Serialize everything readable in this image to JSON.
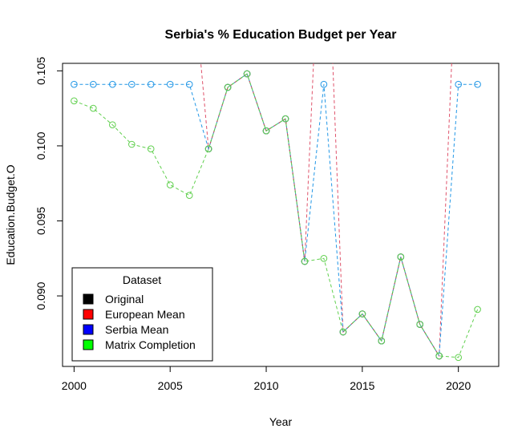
{
  "chart_data": {
    "type": "line",
    "title": "Serbia's % Education Budget per Year",
    "xlabel": "Year",
    "ylabel": "Education.Budget.O",
    "xlim": [
      1999.4,
      2022.1
    ],
    "ylim": [
      0.0853,
      0.1055
    ],
    "x_ticks": [
      2000,
      2005,
      2010,
      2015,
      2020
    ],
    "y_ticks": [
      0.09,
      0.095,
      0.1,
      0.105
    ],
    "x_tick_labels": [
      "2000",
      "2005",
      "2010",
      "2015",
      "2020"
    ],
    "y_tick_labels": [
      "0.090",
      "0.095",
      "0.100",
      "0.105"
    ],
    "grid": false,
    "legend": {
      "title": "Dataset",
      "position": "bottom-left",
      "entries": [
        "Original",
        "European Mean",
        "Serbia Mean",
        "Matrix Completion"
      ]
    },
    "x": [
      2000,
      2001,
      2002,
      2003,
      2004,
      2005,
      2006,
      2007,
      2008,
      2009,
      2010,
      2011,
      2012,
      2013,
      2014,
      2015,
      2016,
      2017,
      2018,
      2019,
      2020,
      2021
    ],
    "series": [
      {
        "name": "Original",
        "color": "#000000",
        "values": [
          null,
          null,
          null,
          null,
          null,
          null,
          null,
          0.0998,
          0.1039,
          0.1048,
          0.101,
          0.1018,
          0.0923,
          null,
          0.0876,
          0.0888,
          0.087,
          0.0926,
          0.0881,
          0.086,
          null,
          null
        ]
      },
      {
        "name": "European Mean",
        "color": "#DF536B",
        "values": [
          null,
          null,
          null,
          null,
          null,
          null,
          0.114,
          0.0998,
          0.1039,
          0.1048,
          0.101,
          0.1018,
          0.0923,
          0.121,
          0.0876,
          0.0888,
          0.087,
          0.0926,
          0.0881,
          0.086,
          0.116,
          null
        ]
      },
      {
        "name": "Serbia Mean",
        "color": "#2297E6",
        "values": [
          0.1041,
          0.1041,
          0.1041,
          0.1041,
          0.1041,
          0.1041,
          0.1041,
          0.0998,
          0.1039,
          0.1048,
          0.101,
          0.1018,
          0.0923,
          0.1041,
          0.0876,
          0.0888,
          0.087,
          0.0926,
          0.0881,
          0.086,
          0.1041,
          0.1041
        ]
      },
      {
        "name": "Matrix Completion",
        "color": "#61D04F",
        "values": [
          0.103,
          0.1025,
          0.1014,
          0.1001,
          0.0998,
          0.0974,
          0.0967,
          0.0998,
          0.1039,
          0.1048,
          0.101,
          0.1018,
          0.0923,
          0.0925,
          0.0876,
          0.0888,
          0.087,
          0.0926,
          0.0881,
          0.086,
          0.0859,
          0.0891
        ]
      }
    ],
    "legend_swatch_colors": [
      "#000000",
      "#FF0000",
      "#0000FF",
      "#00FF00"
    ]
  }
}
